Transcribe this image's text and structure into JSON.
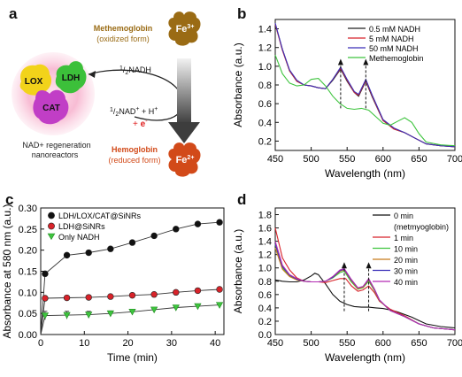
{
  "panel_letters": {
    "a": "a",
    "b": "b",
    "c": "c",
    "d": "d"
  },
  "schematic": {
    "methemoglobin": {
      "name": "Methemoglobin",
      "form": "(oxidized form)",
      "ion": "Fe",
      "charge": "3+"
    },
    "hemoglobin": {
      "name": "Hemoglobin",
      "form": "(reduced form)",
      "ion": "Fe",
      "charge": "2+"
    },
    "enzymes": {
      "lox": "LOX",
      "ldh": "LDH",
      "cat": "CAT"
    },
    "reaction_input": {
      "prefix": "1",
      "sep": "/",
      "den": "2",
      "species": "NADH"
    },
    "reaction_output_1": {
      "prefix": "1",
      "sep": "/",
      "den": "2",
      "species": "NAD",
      "charge": "+",
      "rest": " + H",
      "rest_charge": "+"
    },
    "reaction_output_2": {
      "sign": "+ ",
      "electron": "e",
      "charge": "-"
    },
    "caption_line1": "NAD+ regeneration",
    "caption_line2": "nanoreactors",
    "colors": {
      "methemoglobin": "#9a6b14",
      "hemoglobin": "#d24a19",
      "lox": "#f2d31a",
      "ldh": "#3cc03a",
      "cat": "#c13ec6",
      "glow": "#f6a9c7",
      "electron": "#e01f1f"
    }
  },
  "chart_data": [
    {
      "panel": "b",
      "type": "line",
      "xlabel": "Wavelength (nm)",
      "ylabel": "Absorbance (a.u.)",
      "xlim": [
        450,
        700
      ],
      "ylim": [
        0.1,
        1.5
      ],
      "xticks": [
        "450",
        "500",
        "550",
        "600",
        "650",
        "700"
      ],
      "yticks": [
        "0.2",
        "0.4",
        "0.6",
        "0.8",
        "1.0",
        "1.2",
        "1.4"
      ],
      "legend_position": "top-right",
      "annotations": [
        "up-arrow at 541 nm",
        "up-arrow at 576 nm"
      ],
      "series": [
        {
          "name": "0.5 mM NADH",
          "color": "#222222",
          "x": [
            450,
            460,
            470,
            480,
            490,
            500,
            510,
            520,
            530,
            541,
            550,
            560,
            566,
            576,
            585,
            600,
            615,
            630,
            645,
            660,
            680,
            700
          ],
          "y": [
            1.45,
            1.18,
            0.95,
            0.84,
            0.8,
            0.79,
            0.77,
            0.76,
            0.85,
            0.97,
            0.84,
            0.72,
            0.68,
            0.84,
            0.67,
            0.42,
            0.33,
            0.29,
            0.23,
            0.17,
            0.15,
            0.14
          ]
        },
        {
          "name": "5 mM NADH",
          "color": "#d8232a",
          "x": [
            450,
            460,
            470,
            480,
            490,
            500,
            510,
            520,
            530,
            541,
            550,
            560,
            566,
            576,
            585,
            600,
            615,
            630,
            645,
            660,
            680,
            700
          ],
          "y": [
            1.45,
            1.17,
            0.95,
            0.84,
            0.8,
            0.79,
            0.77,
            0.76,
            0.86,
            0.98,
            0.85,
            0.72,
            0.69,
            0.85,
            0.68,
            0.42,
            0.33,
            0.29,
            0.23,
            0.17,
            0.15,
            0.14
          ]
        },
        {
          "name": "50 mM NADH",
          "color": "#3a2fb8",
          "x": [
            450,
            460,
            470,
            480,
            490,
            500,
            510,
            520,
            530,
            541,
            550,
            560,
            566,
            576,
            585,
            600,
            615,
            630,
            645,
            660,
            680,
            700
          ],
          "y": [
            1.46,
            1.18,
            0.96,
            0.85,
            0.8,
            0.79,
            0.77,
            0.76,
            0.86,
            0.99,
            0.86,
            0.73,
            0.7,
            0.86,
            0.69,
            0.43,
            0.34,
            0.29,
            0.23,
            0.17,
            0.15,
            0.14
          ]
        },
        {
          "name": "Methemoglobin",
          "color": "#3ec43e",
          "x": [
            450,
            460,
            470,
            480,
            490,
            500,
            510,
            520,
            530,
            540,
            550,
            560,
            570,
            580,
            590,
            600,
            610,
            620,
            630,
            640,
            650,
            660,
            680,
            700
          ],
          "y": [
            1.12,
            0.92,
            0.82,
            0.79,
            0.8,
            0.86,
            0.87,
            0.79,
            0.68,
            0.6,
            0.55,
            0.54,
            0.55,
            0.53,
            0.46,
            0.39,
            0.37,
            0.41,
            0.45,
            0.4,
            0.28,
            0.19,
            0.16,
            0.15
          ]
        }
      ]
    },
    {
      "panel": "c",
      "type": "scatter",
      "xlabel": "Time (min)",
      "ylabel": "Absorbance at 580 nm (a.u.)",
      "xlim": [
        0,
        42
      ],
      "ylim": [
        0,
        0.3
      ],
      "xticks": [
        "0",
        "10",
        "20",
        "30",
        "40"
      ],
      "yticks": [
        "0.00",
        "0.05",
        "0.10",
        "0.15",
        "0.20",
        "0.25",
        "0.30"
      ],
      "legend_position": "top-left",
      "series": [
        {
          "name": "LDH/LOX/CAT@SiNRs",
          "color": "#111111",
          "marker": "circle",
          "x": [
            0,
            1,
            6,
            11,
            16,
            21,
            26,
            31,
            36,
            41
          ],
          "y": [
            0,
            0.144,
            0.188,
            0.194,
            0.203,
            0.218,
            0.234,
            0.25,
            0.262,
            0.266
          ],
          "err": [
            0,
            0.004,
            0.004,
            0.003,
            0.003,
            0.003,
            0.004,
            0.005,
            0.004,
            0.003
          ]
        },
        {
          "name": "LDH@SiNRs",
          "color": "#d8232a",
          "marker": "circle",
          "x": [
            0,
            1,
            6,
            11,
            16,
            21,
            26,
            31,
            36,
            41
          ],
          "y": [
            0,
            0.086,
            0.087,
            0.088,
            0.09,
            0.093,
            0.095,
            0.1,
            0.104,
            0.107
          ],
          "err": [
            0,
            0.004,
            0.004,
            0.004,
            0.003,
            0.004,
            0.004,
            0.004,
            0.003,
            0.003
          ]
        },
        {
          "name": "Only NADH",
          "color": "#3ec43e",
          "marker": "triangle-down",
          "x": [
            0,
            1,
            6,
            11,
            16,
            21,
            26,
            31,
            36,
            41
          ],
          "y": [
            0,
            0.045,
            0.046,
            0.047,
            0.05,
            0.054,
            0.059,
            0.064,
            0.067,
            0.07
          ],
          "err": [
            0,
            0.01,
            0.009,
            0.008,
            0.006,
            0.005,
            0.005,
            0.004,
            0.004,
            0.004
          ]
        }
      ]
    },
    {
      "panel": "d",
      "type": "line",
      "xlabel": "Wavelength (nm)",
      "ylabel": "Absorbance (a.u.)",
      "xlim": [
        450,
        700
      ],
      "ylim": [
        0,
        1.9
      ],
      "xticks": [
        "450",
        "500",
        "550",
        "600",
        "650",
        "700"
      ],
      "yticks": [
        "0.0",
        "0.2",
        "0.4",
        "0.6",
        "0.8",
        "1.0",
        "1.2",
        "1.4",
        "1.6",
        "1.8"
      ],
      "legend_position": "top-right",
      "annotations": [
        "up-arrow at 546 nm",
        "up-arrow at 580 nm"
      ],
      "series": [
        {
          "name": "0 min",
          "sublabel": "(metmyoglobin)",
          "color": "#111111",
          "x": [
            450,
            460,
            470,
            480,
            490,
            500,
            505,
            510,
            520,
            530,
            540,
            550,
            560,
            570,
            580,
            590,
            600,
            610,
            620,
            630,
            640,
            650,
            660,
            680,
            700
          ],
          "y": [
            0.82,
            0.8,
            0.79,
            0.79,
            0.82,
            0.88,
            0.92,
            0.9,
            0.76,
            0.6,
            0.5,
            0.45,
            0.42,
            0.41,
            0.41,
            0.4,
            0.39,
            0.37,
            0.34,
            0.3,
            0.26,
            0.21,
            0.16,
            0.12,
            0.1
          ]
        },
        {
          "name": "1 min",
          "color": "#d8232a",
          "x": [
            450,
            460,
            470,
            480,
            490,
            500,
            510,
            520,
            530,
            540,
            548,
            556,
            565,
            572,
            580,
            588,
            595,
            610,
            630,
            650,
            670,
            700
          ],
          "y": [
            1.6,
            1.15,
            0.97,
            0.85,
            0.8,
            0.79,
            0.79,
            0.78,
            0.81,
            0.84,
            0.84,
            0.73,
            0.65,
            0.67,
            0.73,
            0.63,
            0.5,
            0.38,
            0.28,
            0.16,
            0.1,
            0.07
          ]
        },
        {
          "name": "10 min",
          "color": "#3ec43e",
          "x": [
            450,
            460,
            470,
            480,
            490,
            500,
            510,
            520,
            530,
            540,
            546,
            555,
            565,
            572,
            580,
            588,
            595,
            610,
            630,
            650,
            670,
            700
          ],
          "y": [
            1.35,
            1.0,
            0.88,
            0.83,
            0.8,
            0.79,
            0.79,
            0.8,
            0.85,
            0.93,
            0.95,
            0.8,
            0.68,
            0.7,
            0.8,
            0.66,
            0.51,
            0.36,
            0.27,
            0.16,
            0.1,
            0.07
          ]
        },
        {
          "name": "20 min",
          "color": "#c87b1a",
          "x": [
            450,
            460,
            470,
            480,
            490,
            500,
            510,
            520,
            530,
            540,
            546,
            555,
            565,
            572,
            580,
            588,
            595,
            610,
            630,
            650,
            670,
            700
          ],
          "y": [
            1.3,
            0.98,
            0.87,
            0.82,
            0.8,
            0.79,
            0.79,
            0.8,
            0.86,
            0.95,
            0.97,
            0.82,
            0.69,
            0.71,
            0.82,
            0.67,
            0.51,
            0.36,
            0.27,
            0.16,
            0.1,
            0.07
          ]
        },
        {
          "name": "30 min",
          "color": "#3a2fb8",
          "x": [
            450,
            460,
            470,
            480,
            490,
            500,
            510,
            520,
            530,
            540,
            546,
            555,
            565,
            572,
            580,
            588,
            595,
            610,
            630,
            650,
            670,
            700
          ],
          "y": [
            1.36,
            1.02,
            0.89,
            0.83,
            0.8,
            0.79,
            0.79,
            0.8,
            0.86,
            0.96,
            0.98,
            0.83,
            0.7,
            0.72,
            0.83,
            0.68,
            0.52,
            0.36,
            0.27,
            0.16,
            0.1,
            0.07
          ]
        },
        {
          "name": "40 min",
          "color": "#b32bb3",
          "x": [
            450,
            460,
            470,
            480,
            490,
            500,
            510,
            520,
            530,
            540,
            546,
            555,
            565,
            572,
            580,
            588,
            595,
            610,
            630,
            650,
            670,
            700
          ],
          "y": [
            1.4,
            1.04,
            0.9,
            0.84,
            0.8,
            0.79,
            0.79,
            0.8,
            0.87,
            0.97,
            0.99,
            0.84,
            0.7,
            0.72,
            0.84,
            0.68,
            0.52,
            0.36,
            0.27,
            0.16,
            0.1,
            0.07
          ]
        }
      ]
    }
  ]
}
